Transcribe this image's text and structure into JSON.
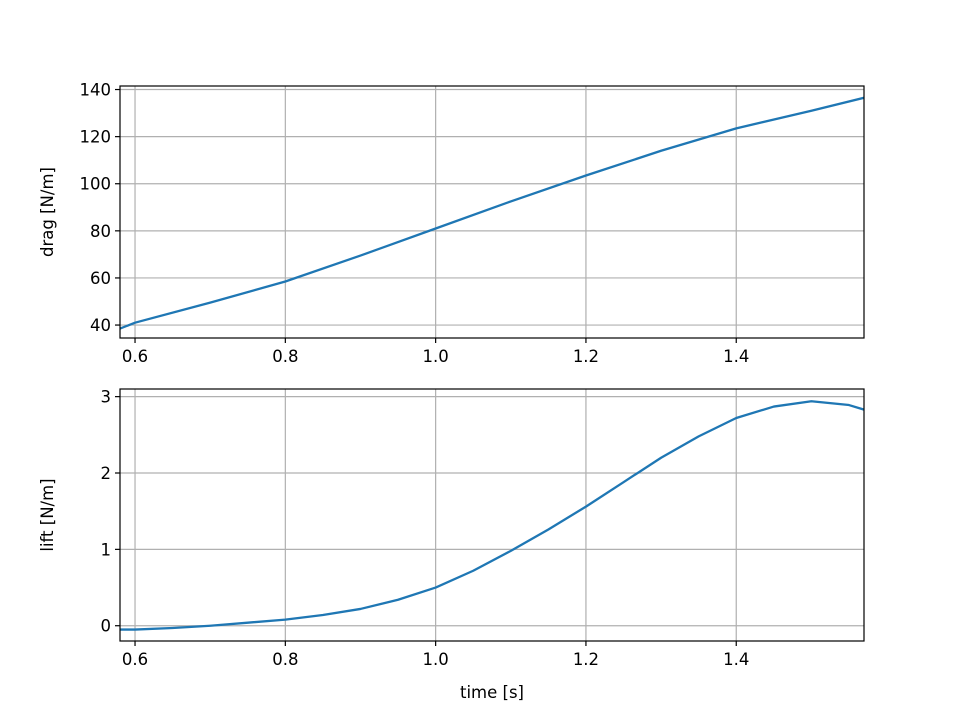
{
  "chart_data": [
    {
      "type": "line",
      "ylabel": "drag [N/m]",
      "xlabel": "",
      "xlim": [
        0.58,
        1.57
      ],
      "ylim": [
        34.5,
        141.5
      ],
      "xticks": [
        "0.6",
        "0.8",
        "1.0",
        "1.2",
        "1.4"
      ],
      "yticks": [
        "40",
        "60",
        "80",
        "100",
        "120",
        "140"
      ],
      "grid": true,
      "series": [
        {
          "color": "#1f77b4",
          "x": [
            0.58,
            0.6,
            0.7,
            0.8,
            0.9,
            1.0,
            1.1,
            1.2,
            1.3,
            1.4,
            1.5,
            1.57
          ],
          "y": [
            38.5,
            41.0,
            49.5,
            58.5,
            69.5,
            81.0,
            92.5,
            103.5,
            114.0,
            123.5,
            131.0,
            136.5
          ]
        }
      ]
    },
    {
      "type": "line",
      "ylabel": "lift [N/m]",
      "xlabel": "time [s]",
      "xlim": [
        0.58,
        1.57
      ],
      "ylim": [
        -0.2,
        3.1
      ],
      "xticks": [
        "0.6",
        "0.8",
        "1.0",
        "1.2",
        "1.4"
      ],
      "yticks": [
        "0",
        "1",
        "2",
        "3"
      ],
      "grid": true,
      "series": [
        {
          "color": "#1f77b4",
          "x": [
            0.58,
            0.6,
            0.65,
            0.7,
            0.75,
            0.8,
            0.85,
            0.9,
            0.95,
            1.0,
            1.05,
            1.1,
            1.15,
            1.2,
            1.25,
            1.3,
            1.35,
            1.4,
            1.45,
            1.5,
            1.55,
            1.57
          ],
          "y": [
            -0.05,
            -0.05,
            -0.03,
            0.0,
            0.04,
            0.08,
            0.14,
            0.22,
            0.34,
            0.5,
            0.72,
            0.98,
            1.26,
            1.56,
            1.88,
            2.2,
            2.48,
            2.72,
            2.87,
            2.94,
            2.89,
            2.83
          ]
        }
      ]
    }
  ]
}
